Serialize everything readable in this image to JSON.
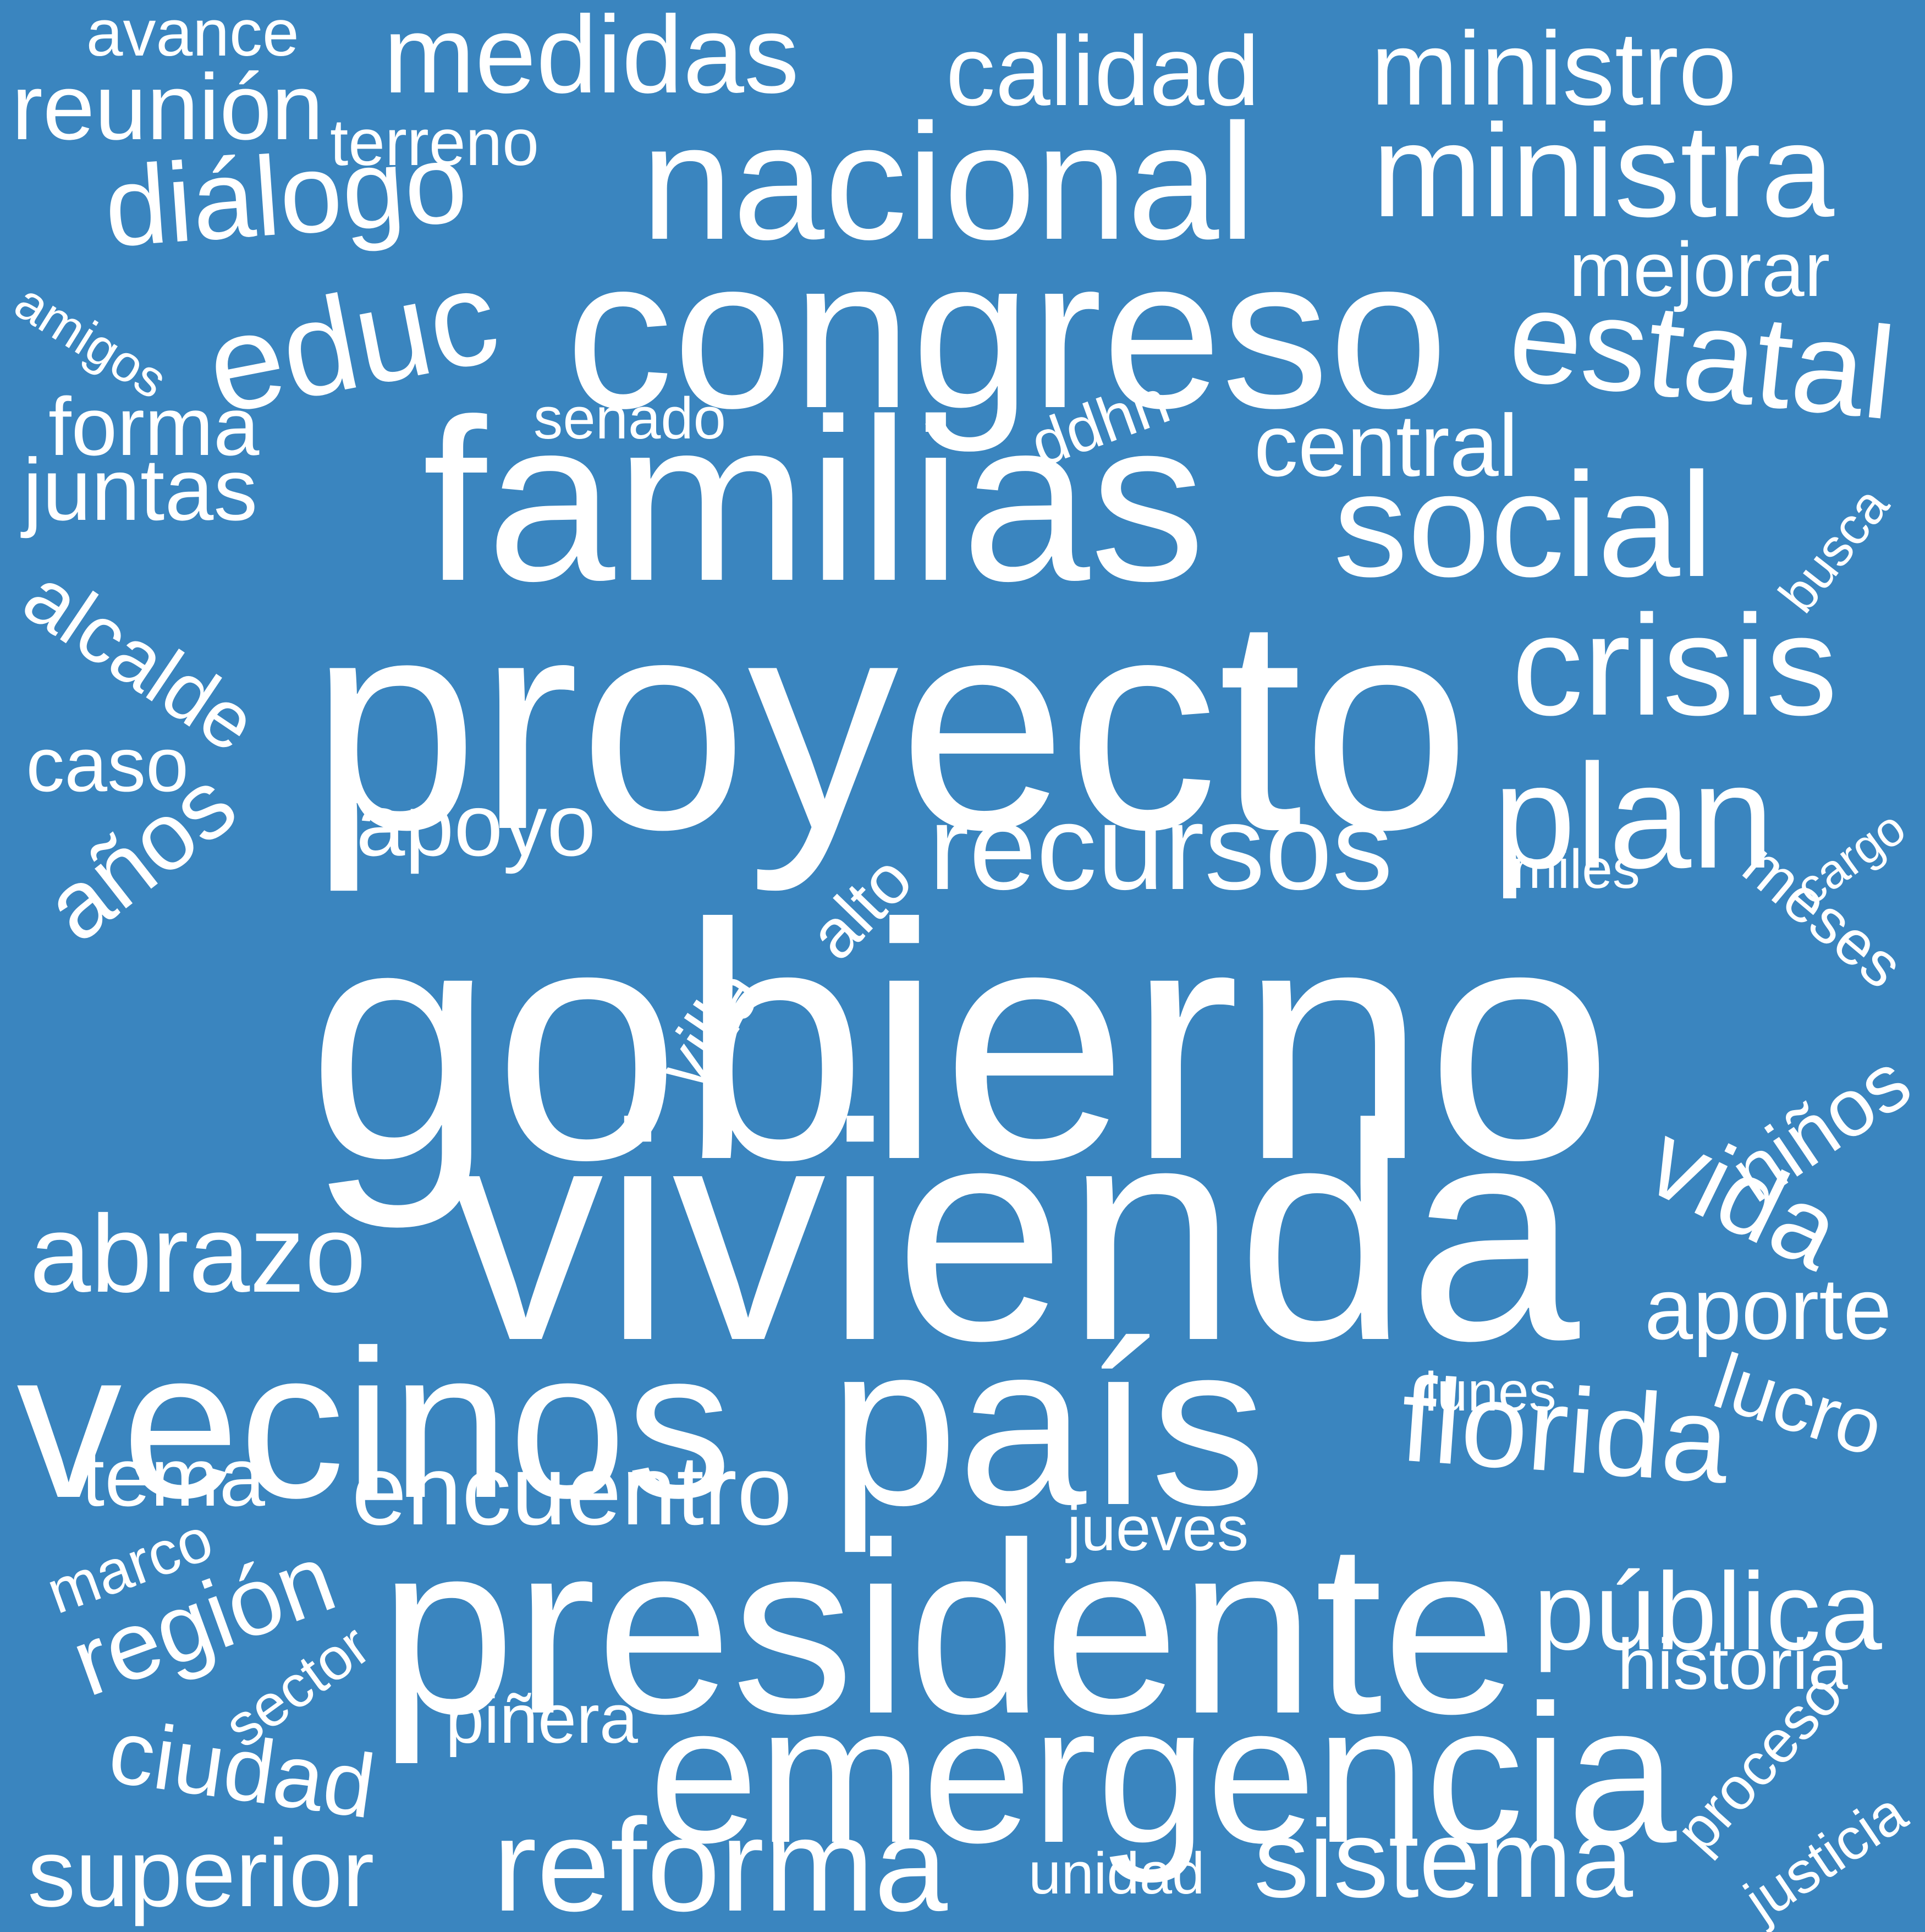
{
  "colors": {
    "background": "#3a85bf",
    "text": "#ffffff"
  },
  "words": [
    "gobierno",
    "vivienda",
    "proyecto",
    "familias",
    "presidente",
    "vecinos",
    "país",
    "congreso",
    "nacional",
    "emergencia",
    "reforma",
    "ministra",
    "social",
    "florida",
    "crisis",
    "estatal",
    "educ",
    "plan",
    "recursos",
    "medidas",
    "diálogo",
    "ministro",
    "abrazo",
    "encuentro",
    "sistema",
    "central",
    "región",
    "pública",
    "vida",
    "calidad",
    "aporte",
    "ciudad",
    "superior",
    "reunión",
    "alcalde",
    "años",
    "apoyo",
    "avance",
    "juntas",
    "forma",
    "caso",
    "tema",
    "mejorar",
    "lucro",
    "proceso",
    "historia",
    "niños",
    "meses",
    "piñera",
    "jueves",
    "senado",
    "terreno",
    "amigos",
    "busca",
    "ddhh",
    "villa",
    "alto",
    "miles",
    "cargo",
    "lunes",
    "marco",
    "sector",
    "unidad",
    "justicia"
  ]
}
